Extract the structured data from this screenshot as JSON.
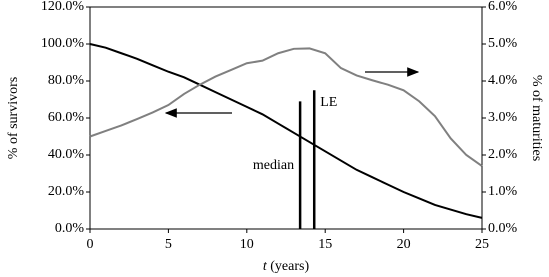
{
  "chart_data": {
    "type": "line",
    "x": [
      0,
      1,
      2,
      3,
      4,
      5,
      6,
      7,
      8,
      9,
      10,
      11,
      12,
      13,
      14,
      15,
      16,
      17,
      18,
      19,
      20,
      21,
      22,
      23,
      24,
      25
    ],
    "series": [
      {
        "name": "% of survivors",
        "color": "#000000",
        "axis": "y",
        "values": [
          100,
          98,
          95,
          92,
          88.5,
          85,
          82,
          78,
          74,
          70,
          66,
          62,
          57,
          52,
          47,
          42,
          37,
          32,
          28,
          24,
          20,
          16.5,
          13,
          10.5,
          8,
          6
        ]
      },
      {
        "name": "% of maturities",
        "color": "#808080",
        "axis": "y2",
        "values": [
          2.5,
          2.65,
          2.8,
          2.97,
          3.15,
          3.35,
          3.65,
          3.9,
          4.12,
          4.3,
          4.48,
          4.55,
          4.75,
          4.87,
          4.88,
          4.75,
          4.35,
          4.15,
          4.02,
          3.9,
          3.75,
          3.45,
          3.05,
          2.45,
          2.0,
          1.7
        ]
      }
    ],
    "markers": [
      {
        "label": "median",
        "x": 13.4,
        "top": 69
      },
      {
        "label": "LE",
        "x": 14.3,
        "top": 75
      }
    ],
    "ylabel": "% of survivors",
    "y2label": "% of maturities",
    "xlabel_var": "t",
    "xlabel_unit": "(years)",
    "xlim": [
      0,
      25
    ],
    "xticks": [
      0,
      5,
      10,
      15,
      20,
      25
    ],
    "ylim": [
      0,
      120
    ],
    "yticks": [
      {
        "value": 0,
        "label": "0.0%"
      },
      {
        "value": 20,
        "label": "20.0%"
      },
      {
        "value": 40,
        "label": "40.0%"
      },
      {
        "value": 60,
        "label": "60.0%"
      },
      {
        "value": 80,
        "label": "80.0%"
      },
      {
        "value": 100,
        "label": "100.0%"
      },
      {
        "value": 120,
        "label": "120.0%"
      }
    ],
    "y2lim": [
      0,
      6
    ],
    "y2ticks": [
      {
        "value": 0,
        "label": "0.0%"
      },
      {
        "value": 1,
        "label": "1.0%"
      },
      {
        "value": 2,
        "label": "2.0%"
      },
      {
        "value": 3,
        "label": "3.0%"
      },
      {
        "value": 4,
        "label": "4.0%"
      },
      {
        "value": 5,
        "label": "5.0%"
      },
      {
        "value": 6,
        "label": "6.0%"
      }
    ],
    "grid": false
  }
}
